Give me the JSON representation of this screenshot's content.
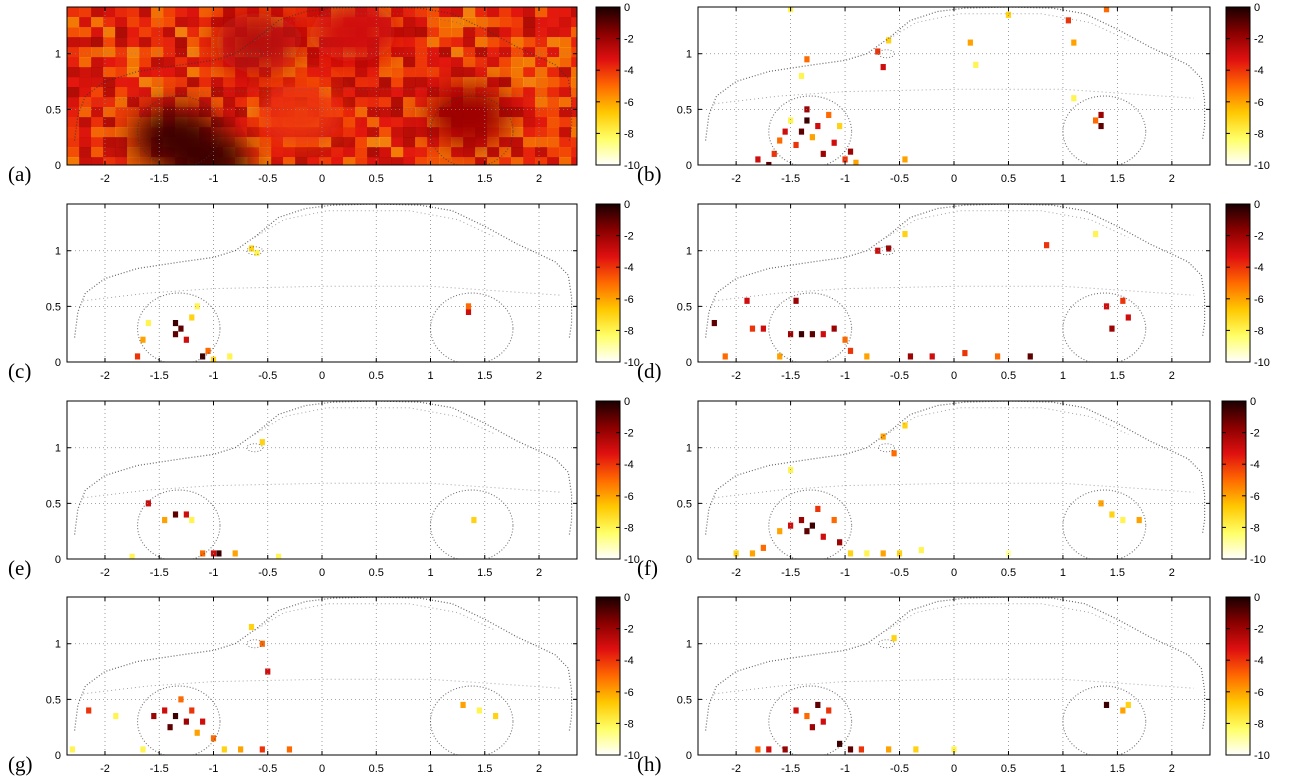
{
  "figure": {
    "panel_labels": [
      "(a)",
      "(b)",
      "(c)",
      "(d)",
      "(e)",
      "(f)",
      "(g)",
      "(h)"
    ]
  },
  "colormap": {
    "name": "hot (reversed)",
    "stops": [
      "#ffffff",
      "#ffff66",
      "#ffc800",
      "#ff6a00",
      "#e01010",
      "#8b0000",
      "#1a0000"
    ]
  },
  "chart_data": [
    {
      "type": "heatmap",
      "label": "(a)",
      "x_ticks": [
        "-2",
        "-1.5",
        "-1",
        "-0.5",
        "0",
        "0.5",
        "1",
        "1.5",
        "2"
      ],
      "y_ticks": [
        "0",
        "0.5",
        "1"
      ],
      "colorbar_ticks": [
        "0",
        "-2",
        "-4",
        "-6",
        "-8",
        "-10"
      ],
      "xlim": [
        -2.35,
        2.35
      ],
      "ylim": [
        0,
        1.42
      ],
      "clim": [
        -10,
        0
      ],
      "grid": true,
      "background": "dense",
      "hotspots": [
        {
          "x": -1.35,
          "y": 0.25,
          "v": -0.5
        },
        {
          "x": -1.05,
          "y": 0.05,
          "v": -0.5
        },
        {
          "x": 1.35,
          "y": 0.45,
          "v": -2.0
        },
        {
          "x": -0.6,
          "y": 1.1,
          "v": -2.5
        },
        {
          "x": 0.3,
          "y": 1.2,
          "v": -3.0
        },
        {
          "x": -0.2,
          "y": 0.45,
          "v": -4.0
        }
      ]
    },
    {
      "type": "heatmap",
      "label": "(b)",
      "x_ticks": [
        "-2",
        "-1.5",
        "-1",
        "-0.5",
        "0",
        "0.5",
        "1",
        "1.5",
        "2"
      ],
      "y_ticks": [
        "0",
        "0.5",
        "1"
      ],
      "colorbar_ticks": [
        "0",
        "-2",
        "-4",
        "-6",
        "-8",
        "-10"
      ],
      "xlim": [
        -2.35,
        2.35
      ],
      "ylim": [
        0,
        1.42
      ],
      "clim": [
        -10,
        0
      ],
      "grid": true,
      "background": "sparse",
      "points": [
        {
          "x": -1.6,
          "y": 0.22,
          "v": -5
        },
        {
          "x": -1.55,
          "y": 0.3,
          "v": -3
        },
        {
          "x": -1.5,
          "y": 0.4,
          "v": -8
        },
        {
          "x": -1.45,
          "y": 0.18,
          "v": -4
        },
        {
          "x": -1.4,
          "y": 0.3,
          "v": -1
        },
        {
          "x": -1.35,
          "y": 0.4,
          "v": -0.5
        },
        {
          "x": -1.35,
          "y": 0.5,
          "v": -2
        },
        {
          "x": -1.3,
          "y": 0.25,
          "v": -6
        },
        {
          "x": -1.25,
          "y": 0.35,
          "v": -3
        },
        {
          "x": -1.2,
          "y": 0.1,
          "v": -2
        },
        {
          "x": -1.15,
          "y": 0.45,
          "v": -5
        },
        {
          "x": -1.1,
          "y": 0.2,
          "v": -3
        },
        {
          "x": -1.05,
          "y": 0.35,
          "v": -7
        },
        {
          "x": -1.0,
          "y": 0.05,
          "v": -4
        },
        {
          "x": -0.95,
          "y": 0.12,
          "v": -2
        },
        {
          "x": -1.7,
          "y": 0.0,
          "v": -1
        },
        {
          "x": -1.65,
          "y": 0.1,
          "v": -4
        },
        {
          "x": -0.9,
          "y": 0.02,
          "v": -6
        },
        {
          "x": -1.4,
          "y": 0.8,
          "v": -8
        },
        {
          "x": -1.35,
          "y": 0.95,
          "v": -5
        },
        {
          "x": -0.7,
          "y": 1.02,
          "v": -4
        },
        {
          "x": -0.65,
          "y": 0.88,
          "v": -3
        },
        {
          "x": -0.6,
          "y": 1.12,
          "v": -7
        },
        {
          "x": -1.5,
          "y": 1.4,
          "v": -8
        },
        {
          "x": 0.15,
          "y": 1.1,
          "v": -6
        },
        {
          "x": 0.2,
          "y": 0.9,
          "v": -8
        },
        {
          "x": 0.5,
          "y": 1.35,
          "v": -7
        },
        {
          "x": 1.05,
          "y": 1.3,
          "v": -4
        },
        {
          "x": 1.1,
          "y": 1.1,
          "v": -6
        },
        {
          "x": 1.4,
          "y": 1.4,
          "v": -5
        },
        {
          "x": 1.35,
          "y": 0.45,
          "v": -2
        },
        {
          "x": 1.35,
          "y": 0.35,
          "v": -1
        },
        {
          "x": 1.3,
          "y": 0.4,
          "v": -5
        },
        {
          "x": 1.1,
          "y": 0.6,
          "v": -8
        },
        {
          "x": -0.45,
          "y": 0.05,
          "v": -6
        },
        {
          "x": -1.8,
          "y": 0.05,
          "v": -3
        }
      ]
    },
    {
      "type": "heatmap",
      "label": "(c)",
      "x_ticks": [
        "-2",
        "-1.5",
        "-1",
        "-0.5",
        "0",
        "0.5",
        "1",
        "1.5",
        "2"
      ],
      "y_ticks": [
        "0",
        "0.5",
        "1"
      ],
      "colorbar_ticks": [
        "0",
        "-2",
        "-4",
        "-6",
        "-8",
        "-10"
      ],
      "xlim": [
        -2.35,
        2.35
      ],
      "ylim": [
        0,
        1.42
      ],
      "clim": [
        -10,
        0
      ],
      "grid": true,
      "background": "sparse",
      "points": [
        {
          "x": -1.7,
          "y": 0.05,
          "v": -4
        },
        {
          "x": -1.65,
          "y": 0.2,
          "v": -6
        },
        {
          "x": -1.6,
          "y": 0.35,
          "v": -8
        },
        {
          "x": -1.35,
          "y": 0.35,
          "v": -0.5
        },
        {
          "x": -1.35,
          "y": 0.25,
          "v": -1
        },
        {
          "x": -1.3,
          "y": 0.3,
          "v": -1
        },
        {
          "x": -1.25,
          "y": 0.2,
          "v": -3
        },
        {
          "x": -1.2,
          "y": 0.4,
          "v": -7
        },
        {
          "x": -1.15,
          "y": 0.5,
          "v": -8
        },
        {
          "x": -1.1,
          "y": 0.05,
          "v": -0.5
        },
        {
          "x": -1.05,
          "y": 0.1,
          "v": -5
        },
        {
          "x": -1.0,
          "y": 0.02,
          "v": -7
        },
        {
          "x": -0.85,
          "y": 0.05,
          "v": -8
        },
        {
          "x": -0.65,
          "y": 1.02,
          "v": -7
        },
        {
          "x": -0.6,
          "y": 0.98,
          "v": -8
        },
        {
          "x": 1.35,
          "y": 0.45,
          "v": -3
        },
        {
          "x": 1.35,
          "y": 0.5,
          "v": -5
        }
      ]
    },
    {
      "type": "heatmap",
      "label": "(d)",
      "x_ticks": [
        "-2",
        "-1.5",
        "-1",
        "-0.5",
        "0",
        "0.5",
        "1",
        "1.5",
        "2"
      ],
      "y_ticks": [
        "0",
        "0.5",
        "1"
      ],
      "colorbar_ticks": [
        "0",
        "-2",
        "-4",
        "-6",
        "-8",
        "-10"
      ],
      "xlim": [
        -2.35,
        2.35
      ],
      "ylim": [
        0,
        1.42
      ],
      "clim": [
        -10,
        0
      ],
      "grid": true,
      "background": "sparse",
      "points": [
        {
          "x": -2.2,
          "y": 0.35,
          "v": -1
        },
        {
          "x": -1.85,
          "y": 0.3,
          "v": -4
        },
        {
          "x": -1.75,
          "y": 0.3,
          "v": -3
        },
        {
          "x": -1.5,
          "y": 0.25,
          "v": -2
        },
        {
          "x": -1.4,
          "y": 0.25,
          "v": -0.5
        },
        {
          "x": -1.3,
          "y": 0.25,
          "v": -1
        },
        {
          "x": -1.2,
          "y": 0.25,
          "v": -3
        },
        {
          "x": -1.1,
          "y": 0.3,
          "v": -2
        },
        {
          "x": -1.0,
          "y": 0.2,
          "v": -5
        },
        {
          "x": -0.95,
          "y": 0.1,
          "v": -4
        },
        {
          "x": -0.8,
          "y": 0.05,
          "v": -6
        },
        {
          "x": -0.4,
          "y": 0.05,
          "v": -2
        },
        {
          "x": -0.2,
          "y": 0.05,
          "v": -3
        },
        {
          "x": 0.1,
          "y": 0.08,
          "v": -4
        },
        {
          "x": 0.4,
          "y": 0.05,
          "v": -5
        },
        {
          "x": 0.7,
          "y": 0.05,
          "v": -1
        },
        {
          "x": -1.9,
          "y": 0.55,
          "v": -3
        },
        {
          "x": -1.45,
          "y": 0.55,
          "v": -2
        },
        {
          "x": -0.7,
          "y": 1.0,
          "v": -3
        },
        {
          "x": -0.6,
          "y": 1.02,
          "v": -2
        },
        {
          "x": -0.45,
          "y": 1.15,
          "v": -7
        },
        {
          "x": 0.85,
          "y": 1.05,
          "v": -4
        },
        {
          "x": 1.4,
          "y": 0.5,
          "v": -3
        },
        {
          "x": 1.45,
          "y": 0.3,
          "v": -2
        },
        {
          "x": 1.55,
          "y": 0.55,
          "v": -4
        },
        {
          "x": 1.6,
          "y": 0.4,
          "v": -3
        },
        {
          "x": 1.3,
          "y": 1.15,
          "v": -8
        },
        {
          "x": -2.1,
          "y": 0.05,
          "v": -5
        },
        {
          "x": -1.6,
          "y": 0.05,
          "v": -6
        }
      ]
    },
    {
      "type": "heatmap",
      "label": "(e)",
      "x_ticks": [
        "-2",
        "-1.5",
        "-1",
        "-0.5",
        "0",
        "0.5",
        "1",
        "1.5",
        "2"
      ],
      "y_ticks": [
        "0",
        "0.5",
        "1"
      ],
      "colorbar_ticks": [
        "0",
        "-2",
        "-4",
        "-6",
        "-8",
        "-10"
      ],
      "xlim": [
        -2.35,
        2.35
      ],
      "ylim": [
        0,
        1.42
      ],
      "clim": [
        -10,
        0
      ],
      "grid": true,
      "background": "sparse",
      "points": [
        {
          "x": -1.6,
          "y": 0.5,
          "v": -3
        },
        {
          "x": -1.45,
          "y": 0.35,
          "v": -6
        },
        {
          "x": -1.35,
          "y": 0.4,
          "v": -1
        },
        {
          "x": -1.25,
          "y": 0.4,
          "v": -3
        },
        {
          "x": -1.2,
          "y": 0.35,
          "v": -8
        },
        {
          "x": -1.1,
          "y": 0.05,
          "v": -5
        },
        {
          "x": -1.0,
          "y": 0.05,
          "v": -3
        },
        {
          "x": -0.95,
          "y": 0.05,
          "v": -0.5
        },
        {
          "x": -0.8,
          "y": 0.05,
          "v": -6
        },
        {
          "x": -0.55,
          "y": 1.05,
          "v": -7
        },
        {
          "x": 1.4,
          "y": 0.35,
          "v": -7
        },
        {
          "x": -1.75,
          "y": 0.02,
          "v": -8
        },
        {
          "x": -0.4,
          "y": 0.02,
          "v": -8
        }
      ]
    },
    {
      "type": "heatmap",
      "label": "(f)",
      "x_ticks": [
        "-2",
        "-1.5",
        "-1",
        "-0.5",
        "0",
        "0.5",
        "1",
        "1.5",
        "2"
      ],
      "y_ticks": [
        "0",
        "0.5",
        "1"
      ],
      "colorbar_ticks": [
        "0",
        "-2",
        "-4",
        "-6",
        "-8",
        "-10"
      ],
      "xlim": [
        -2.35,
        2.35
      ],
      "ylim": [
        0,
        1.42
      ],
      "clim": [
        -10,
        0
      ],
      "grid": true,
      "background": "sparse",
      "points": [
        {
          "x": -1.75,
          "y": 0.1,
          "v": -5
        },
        {
          "x": -1.6,
          "y": 0.25,
          "v": -6
        },
        {
          "x": -1.5,
          "y": 0.3,
          "v": -3
        },
        {
          "x": -1.4,
          "y": 0.35,
          "v": -2
        },
        {
          "x": -1.35,
          "y": 0.25,
          "v": -1
        },
        {
          "x": -1.3,
          "y": 0.3,
          "v": -0.5
        },
        {
          "x": -1.25,
          "y": 0.45,
          "v": -4
        },
        {
          "x": -1.2,
          "y": 0.2,
          "v": -3
        },
        {
          "x": -1.1,
          "y": 0.35,
          "v": -5
        },
        {
          "x": -1.05,
          "y": 0.15,
          "v": -2
        },
        {
          "x": -0.95,
          "y": 0.05,
          "v": -7
        },
        {
          "x": -0.8,
          "y": 0.05,
          "v": -8
        },
        {
          "x": -0.65,
          "y": 0.05,
          "v": -6
        },
        {
          "x": -0.5,
          "y": 0.05,
          "v": -7
        },
        {
          "x": -0.3,
          "y": 0.08,
          "v": -8
        },
        {
          "x": -1.85,
          "y": 0.05,
          "v": -6
        },
        {
          "x": -2.0,
          "y": 0.05,
          "v": -7
        },
        {
          "x": -0.65,
          "y": 1.1,
          "v": -6
        },
        {
          "x": -0.55,
          "y": 0.95,
          "v": -5
        },
        {
          "x": -0.45,
          "y": 1.2,
          "v": -7
        },
        {
          "x": -1.5,
          "y": 0.8,
          "v": -8
        },
        {
          "x": 1.35,
          "y": 0.5,
          "v": -6
        },
        {
          "x": 1.45,
          "y": 0.4,
          "v": -7
        },
        {
          "x": 1.55,
          "y": 0.35,
          "v": -8
        },
        {
          "x": 1.7,
          "y": 0.35,
          "v": -6
        },
        {
          "x": 0.5,
          "y": 0.05,
          "v": -9
        }
      ]
    },
    {
      "type": "heatmap",
      "label": "(g)",
      "x_ticks": [
        "-2",
        "-1.5",
        "-1",
        "-0.5",
        "0",
        "0.5",
        "1",
        "1.5",
        "2"
      ],
      "y_ticks": [
        "0",
        "0.5",
        "1"
      ],
      "colorbar_ticks": [
        "0",
        "-2",
        "-4",
        "-6",
        "-8",
        "-10"
      ],
      "xlim": [
        -2.35,
        2.35
      ],
      "ylim": [
        0,
        1.42
      ],
      "clim": [
        -10,
        0
      ],
      "grid": true,
      "background": "sparse",
      "points": [
        {
          "x": -2.15,
          "y": 0.4,
          "v": -4
        },
        {
          "x": -1.9,
          "y": 0.35,
          "v": -8
        },
        {
          "x": -1.55,
          "y": 0.35,
          "v": -2
        },
        {
          "x": -1.45,
          "y": 0.4,
          "v": -3
        },
        {
          "x": -1.4,
          "y": 0.25,
          "v": -1
        },
        {
          "x": -1.35,
          "y": 0.35,
          "v": -0.5
        },
        {
          "x": -1.3,
          "y": 0.5,
          "v": -5
        },
        {
          "x": -1.25,
          "y": 0.3,
          "v": -2
        },
        {
          "x": -1.2,
          "y": 0.4,
          "v": -4
        },
        {
          "x": -1.15,
          "y": 0.2,
          "v": -6
        },
        {
          "x": -1.1,
          "y": 0.3,
          "v": -3
        },
        {
          "x": -1.0,
          "y": 0.15,
          "v": -5
        },
        {
          "x": -0.9,
          "y": 0.05,
          "v": -7
        },
        {
          "x": -0.75,
          "y": 0.05,
          "v": -6
        },
        {
          "x": -0.55,
          "y": 0.05,
          "v": -4
        },
        {
          "x": -0.3,
          "y": 0.05,
          "v": -5
        },
        {
          "x": -1.65,
          "y": 0.05,
          "v": -8
        },
        {
          "x": -0.65,
          "y": 1.15,
          "v": -7
        },
        {
          "x": -0.55,
          "y": 1.0,
          "v": -5
        },
        {
          "x": -0.5,
          "y": 0.75,
          "v": -3
        },
        {
          "x": 1.3,
          "y": 0.45,
          "v": -6
        },
        {
          "x": 1.45,
          "y": 0.4,
          "v": -8
        },
        {
          "x": 1.6,
          "y": 0.35,
          "v": -7
        },
        {
          "x": -2.3,
          "y": 0.05,
          "v": -8
        }
      ]
    },
    {
      "type": "heatmap",
      "label": "(h)",
      "x_ticks": [
        "-2",
        "-1.5",
        "-1",
        "-0.5",
        "0",
        "0.5",
        "1",
        "1.5",
        "2"
      ],
      "y_ticks": [
        "0",
        "0.5",
        "1"
      ],
      "colorbar_ticks": [
        "0",
        "-2",
        "-4",
        "-6",
        "-8",
        "-10"
      ],
      "xlim": [
        -2.35,
        2.35
      ],
      "ylim": [
        0,
        1.42
      ],
      "clim": [
        -10,
        0
      ],
      "grid": true,
      "background": "sparse",
      "points": [
        {
          "x": -1.55,
          "y": 0.05,
          "v": -2
        },
        {
          "x": -1.45,
          "y": 0.4,
          "v": -3
        },
        {
          "x": -1.35,
          "y": 0.35,
          "v": -5
        },
        {
          "x": -1.3,
          "y": 0.25,
          "v": -2
        },
        {
          "x": -1.25,
          "y": 0.45,
          "v": -1
        },
        {
          "x": -1.2,
          "y": 0.3,
          "v": -3
        },
        {
          "x": -1.15,
          "y": 0.4,
          "v": -4
        },
        {
          "x": -1.05,
          "y": 0.1,
          "v": -0.5
        },
        {
          "x": -0.95,
          "y": 0.05,
          "v": -1
        },
        {
          "x": -0.85,
          "y": 0.05,
          "v": -4
        },
        {
          "x": -0.6,
          "y": 0.05,
          "v": -6
        },
        {
          "x": -0.35,
          "y": 0.05,
          "v": -7
        },
        {
          "x": -1.8,
          "y": 0.05,
          "v": -5
        },
        {
          "x": -1.7,
          "y": 0.05,
          "v": -3
        },
        {
          "x": 1.4,
          "y": 0.45,
          "v": -0.5
        },
        {
          "x": 1.55,
          "y": 0.4,
          "v": -6
        },
        {
          "x": 1.6,
          "y": 0.45,
          "v": -7
        },
        {
          "x": -0.55,
          "y": 1.05,
          "v": -7
        },
        {
          "x": 0.0,
          "y": 0.05,
          "v": -8
        }
      ]
    }
  ]
}
